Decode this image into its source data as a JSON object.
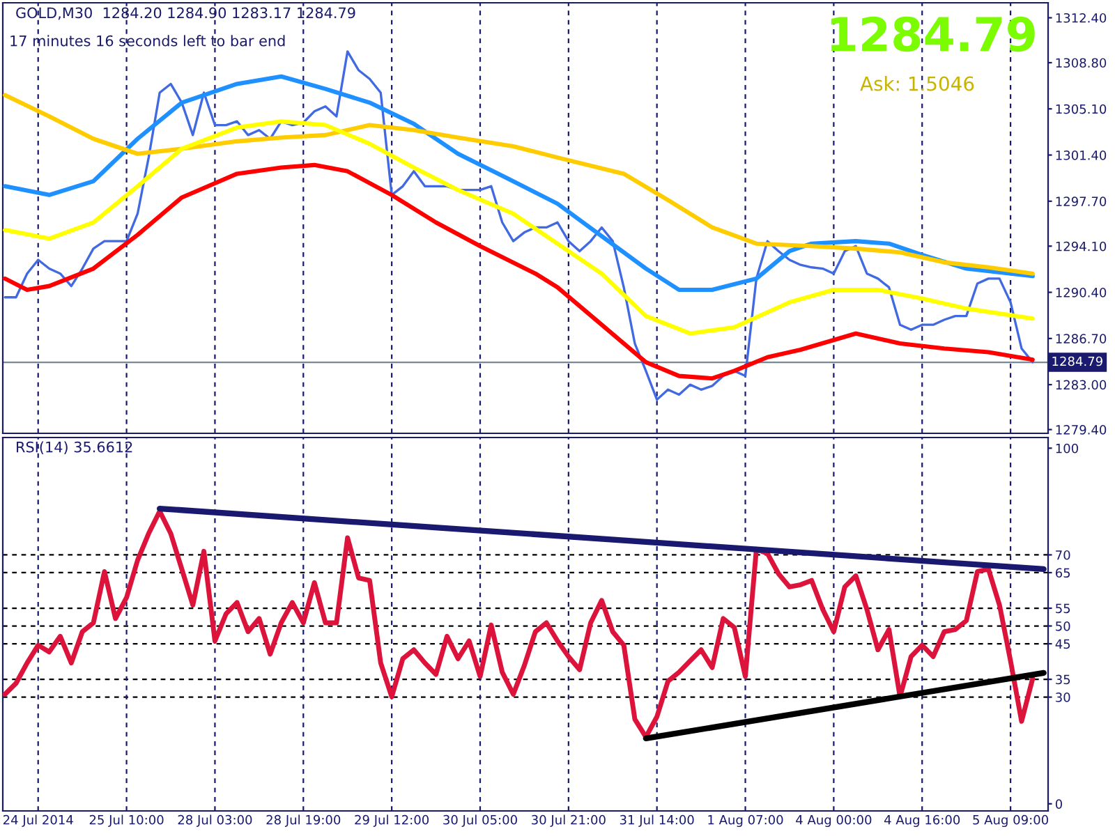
{
  "chart_data": [
    {
      "type": "line",
      "title": "GOLD,M30  1284.20 1284.90 1283.17 1284.79",
      "annotations": [
        "17 minutes 16 seconds left to bar end",
        "1284.79",
        "Ask: 1.5046"
      ],
      "categories": [
        null,
        null,
        null,
        null,
        null,
        null,
        null,
        null,
        null,
        null,
        null,
        null,
        null,
        null,
        null,
        null,
        null,
        null,
        null,
        null,
        null,
        null,
        null,
        null,
        null,
        null,
        null,
        null,
        null,
        null,
        null,
        null,
        null,
        null,
        null,
        null,
        null,
        null,
        null,
        null,
        null,
        null,
        null,
        null,
        null,
        null,
        null,
        null,
        null,
        null,
        null,
        null,
        null,
        null,
        null,
        null,
        null,
        null,
        null,
        null,
        null,
        null,
        null,
        null,
        null,
        null,
        null,
        null,
        null,
        null,
        null,
        null,
        null,
        null,
        null,
        null,
        null,
        null,
        null,
        null,
        null,
        null,
        null,
        null,
        null,
        null,
        null,
        null,
        null,
        null,
        null,
        null,
        null,
        null,
        null
      ],
      "tick_labels": "y",
      "grid": "x",
      "ylim": [
        1279.1,
        1313.6
      ],
      "yticks": [
        {
          "value": 1279.4,
          "label": "1279.40"
        },
        {
          "value": 1283.0,
          "label": "1283.00"
        },
        {
          "value": 1286.7,
          "label": "1286.70"
        },
        {
          "value": 1290.4,
          "label": "1290.40"
        },
        {
          "value": 1294.1,
          "label": "1294.10"
        },
        {
          "value": 1297.7,
          "label": "1297.70"
        },
        {
          "value": 1301.4,
          "label": "1301.40"
        },
        {
          "value": 1305.1,
          "label": "1305.10"
        },
        {
          "value": 1308.8,
          "label": "1308.80"
        },
        {
          "value": 1312.4,
          "label": "1312.40"
        }
      ],
      "ref_lines": [
        {
          "axis": "y",
          "value": 1284.79,
          "label": "1284.79",
          "color": "#778899",
          "line_style": "solid"
        }
      ],
      "series": [
        {
          "color": "#4169e1",
          "values": [
            1290.0,
            1290.0,
            1291.9,
            1293.0,
            1292.3,
            1291.9,
            1290.9,
            1292.3,
            1293.9,
            1294.5,
            1294.5,
            1294.5,
            1296.7,
            1301.2,
            1306.4,
            1307.1,
            1305.6,
            1303.0,
            1306.4,
            1303.8,
            1303.8,
            1304.1,
            1303.0,
            1303.4,
            1302.7,
            1304.1,
            1303.8,
            1304.0,
            1304.9,
            1305.3,
            1304.5,
            1309.7,
            1308.2,
            1307.5,
            1306.4,
            1298.2,
            1298.9,
            1300.1,
            1298.9,
            1298.9,
            1298.9,
            1298.6,
            1298.6,
            1298.6,
            1298.9,
            1296.0,
            1294.5,
            1295.2,
            1295.6,
            1295.6,
            1296.0,
            1294.5,
            1293.7,
            1294.5,
            1295.6,
            1294.5,
            1290.8,
            1286.3,
            1284.1,
            1281.8,
            1282.6,
            1282.2,
            1283.0,
            1282.6,
            1282.9,
            1283.7,
            1284.1,
            1283.7,
            1291.5,
            1294.5,
            1293.7,
            1293.0,
            1292.6,
            1292.4,
            1292.3,
            1291.9,
            1293.7,
            1294.1,
            1291.9,
            1291.5,
            1290.8,
            1287.8,
            1287.4,
            1287.8,
            1287.8,
            1288.2,
            1288.5,
            1288.5,
            1291.1,
            1291.5,
            1291.5,
            1289.6,
            1285.9,
            1284.8,
            null
          ]
        },
        {
          "color": "#1e90ff",
          "values": [
            1298.9,
            null,
            null,
            null,
            1298.2,
            null,
            null,
            null,
            1299.3,
            null,
            null,
            null,
            1302.7,
            null,
            null,
            null,
            1305.6,
            null,
            null,
            null,
            null,
            1307.1,
            null,
            null,
            null,
            1307.7,
            null,
            null,
            null,
            1306.7,
            null,
            null,
            null,
            1305.6,
            null,
            null,
            null,
            1303.9,
            null,
            null,
            null,
            1301.5,
            null,
            null,
            null,
            null,
            1299.3,
            null,
            null,
            null,
            1297.5,
            null,
            null,
            null,
            1294.9,
            null,
            null,
            null,
            1292.3,
            null,
            null,
            1290.6,
            null,
            null,
            1290.6,
            null,
            null,
            null,
            1291.5,
            null,
            null,
            1293.7,
            null,
            1294.3,
            null,
            null,
            null,
            1294.5,
            null,
            null,
            1294.3,
            null,
            null,
            1293.4,
            null,
            null,
            null,
            1292.3,
            null,
            null,
            null,
            null,
            null,
            1291.7,
            null
          ]
        },
        {
          "color": "#ffcc00",
          "values": [
            1306.2,
            null,
            null,
            null,
            1304.5,
            null,
            null,
            null,
            1302.7,
            null,
            null,
            null,
            1301.5,
            null,
            null,
            null,
            1301.9,
            null,
            null,
            null,
            null,
            1302.5,
            null,
            null,
            null,
            1302.8,
            null,
            null,
            null,
            1303.0,
            null,
            null,
            null,
            1303.8,
            null,
            null,
            null,
            1303.4,
            null,
            null,
            null,
            1302.8,
            null,
            null,
            null,
            null,
            1302.1,
            null,
            null,
            null,
            1301.2,
            null,
            null,
            null,
            null,
            null,
            1299.9,
            null,
            null,
            null,
            1297.8,
            null,
            null,
            null,
            1295.6,
            null,
            null,
            null,
            1294.3,
            null,
            null,
            null,
            null,
            1294.1,
            null,
            null,
            null,
            1293.9,
            null,
            null,
            null,
            1293.6,
            null,
            null,
            null,
            1292.8,
            null,
            null,
            null,
            1292.4,
            null,
            null,
            null,
            1291.9,
            null
          ]
        },
        {
          "color": "#ffff00",
          "values": [
            1295.4,
            null,
            null,
            null,
            1294.7,
            null,
            null,
            null,
            1296.0,
            null,
            null,
            null,
            1298.9,
            null,
            null,
            null,
            1301.9,
            null,
            null,
            null,
            null,
            1303.6,
            null,
            null,
            null,
            1304.1,
            null,
            null,
            null,
            1303.8,
            null,
            null,
            null,
            1302.3,
            null,
            null,
            null,
            1300.4,
            null,
            null,
            null,
            1298.6,
            null,
            null,
            null,
            null,
            1296.7,
            null,
            null,
            null,
            1294.3,
            null,
            null,
            null,
            1291.9,
            null,
            null,
            null,
            1288.5,
            null,
            null,
            null,
            1287.1,
            null,
            null,
            null,
            1287.6,
            null,
            null,
            null,
            null,
            1289.6,
            null,
            null,
            null,
            1290.6,
            null,
            null,
            null,
            1290.6,
            null,
            null,
            null,
            1289.9,
            null,
            null,
            null,
            1289.1,
            null,
            null,
            null,
            null,
            null,
            1288.3,
            null
          ]
        },
        {
          "color": "#ff0000",
          "values": [
            1291.5,
            null,
            1290.6,
            null,
            1290.9,
            null,
            null,
            null,
            1292.3,
            null,
            null,
            null,
            1295.0,
            null,
            null,
            null,
            1298.0,
            null,
            null,
            null,
            null,
            1299.9,
            null,
            null,
            null,
            1300.4,
            null,
            null,
            1300.6,
            null,
            null,
            1300.1,
            null,
            null,
            null,
            1298.2,
            null,
            null,
            null,
            1296.0,
            null,
            null,
            null,
            1294.1,
            null,
            null,
            null,
            null,
            1291.9,
            null,
            1290.8,
            null,
            null,
            null,
            1287.8,
            null,
            null,
            null,
            1284.8,
            null,
            null,
            1283.7,
            null,
            null,
            1283.5,
            null,
            1284.1,
            null,
            null,
            1285.2,
            null,
            null,
            1285.8,
            null,
            null,
            null,
            null,
            1287.1,
            null,
            null,
            null,
            1286.3,
            null,
            null,
            null,
            1285.9,
            null,
            null,
            null,
            1285.6,
            null,
            null,
            null,
            1285.0,
            null
          ]
        }
      ]
    },
    {
      "type": "line",
      "title": "RSI(14) 35.6612",
      "categories": [
        null,
        null,
        null,
        "24 Jul 2014",
        null,
        null,
        null,
        null,
        null,
        null,
        null,
        "25 Jul 10:00",
        null,
        null,
        null,
        null,
        null,
        null,
        null,
        "28 Jul 03:00",
        null,
        null,
        null,
        null,
        null,
        null,
        null,
        "28 Jul 19:00",
        null,
        null,
        null,
        null,
        null,
        null,
        null,
        "29 Jul 12:00",
        null,
        null,
        null,
        null,
        null,
        null,
        null,
        "30 Jul 05:00",
        null,
        null,
        null,
        null,
        null,
        null,
        null,
        "30 Jul 21:00",
        null,
        null,
        null,
        null,
        null,
        null,
        null,
        "31 Jul 14:00",
        null,
        null,
        null,
        null,
        null,
        null,
        null,
        "1 Aug 07:00",
        null,
        null,
        null,
        null,
        null,
        null,
        null,
        "4 Aug 00:00",
        null,
        null,
        null,
        null,
        null,
        null,
        null,
        "4 Aug 16:00",
        null,
        null,
        null,
        null,
        null,
        null,
        null,
        "5 Aug 09:00",
        null,
        null,
        null
      ],
      "grid": "x",
      "ylim": [
        -2,
        103
      ],
      "yticks": [
        0,
        30,
        35,
        45,
        50,
        55,
        65,
        70,
        100
      ],
      "ref_lines": [
        {
          "axis": "y",
          "value": 30,
          "label": null,
          "color": "#000000",
          "line_style": "dashed"
        },
        {
          "axis": "y",
          "value": 35,
          "label": null,
          "color": "#000000",
          "line_style": "dashed"
        },
        {
          "axis": "y",
          "value": 45,
          "label": null,
          "color": "#000000",
          "line_style": "dashed"
        },
        {
          "axis": "y",
          "value": 50,
          "label": null,
          "color": "#000000",
          "line_style": "dashed"
        },
        {
          "axis": "y",
          "value": 55,
          "label": null,
          "color": "#000000",
          "line_style": "dashed"
        },
        {
          "axis": "y",
          "value": 65,
          "label": null,
          "color": "#000000",
          "line_style": "dashed"
        },
        {
          "axis": "y",
          "value": 70,
          "label": null,
          "color": "#000000",
          "line_style": "dashed"
        }
      ],
      "series": [
        {
          "color": "#dc143c",
          "values": [
            30.8,
            33.9,
            39.6,
            44.6,
            42.7,
            47.1,
            39.6,
            48.4,
            50.9,
            65.3,
            52.1,
            58,
            68.5,
            76,
            82.3,
            76,
            66,
            55.9,
            71,
            45.8,
            53.4,
            56.6,
            48.4,
            52.1,
            42.1,
            50.9,
            56.6,
            50.9,
            62.2,
            50.9,
            50.9,
            74.8,
            63.5,
            62.8,
            39.6,
            30.1,
            40.8,
            43.3,
            39.6,
            36.4,
            47.1,
            40.8,
            45.8,
            35.8,
            50.3,
            37,
            30.8,
            38.9,
            48.4,
            50.9,
            45.8,
            41.4,
            37.7,
            50.9,
            57.2,
            48.4,
            44.6,
            23.8,
            18.8,
            24.5,
            34.5,
            37,
            40.2,
            43.3,
            38.3,
            52.1,
            49.6,
            35.8,
            71.6,
            70.4,
            64.7,
            61,
            61.6,
            62.8,
            54.7,
            48.4,
            61,
            64.1,
            54.7,
            43.3,
            49,
            30.1,
            41.4,
            44.6,
            41.4,
            48.4,
            49,
            51.5,
            65.3,
            66,
            55.9,
            40.2,
            23.2,
            35.2,
            null
          ]
        },
        {
          "color": "#191970",
          "values": [
            null,
            null,
            null,
            null,
            null,
            null,
            null,
            null,
            null,
            null,
            null,
            null,
            null,
            null,
            83,
            null,
            null,
            null,
            null,
            null,
            null,
            null,
            null,
            null,
            null,
            null,
            null,
            null,
            null,
            null,
            null,
            null,
            null,
            null,
            null,
            null,
            null,
            null,
            null,
            null,
            null,
            null,
            null,
            null,
            null,
            null,
            null,
            null,
            null,
            null,
            null,
            null,
            null,
            null,
            null,
            null,
            null,
            null,
            null,
            null,
            null,
            null,
            null,
            null,
            null,
            null,
            null,
            null,
            null,
            null,
            null,
            null,
            null,
            null,
            null,
            null,
            null,
            null,
            null,
            null,
            null,
            null,
            null,
            null,
            null,
            null,
            null,
            null,
            null,
            null,
            null,
            null,
            null,
            null,
            66
          ]
        },
        {
          "color": "#000000",
          "values": [
            null,
            null,
            null,
            null,
            null,
            null,
            null,
            null,
            null,
            null,
            null,
            null,
            null,
            null,
            null,
            null,
            null,
            null,
            null,
            null,
            null,
            null,
            null,
            null,
            null,
            null,
            null,
            null,
            null,
            null,
            null,
            null,
            null,
            null,
            null,
            null,
            null,
            null,
            null,
            null,
            null,
            null,
            null,
            null,
            null,
            null,
            null,
            null,
            null,
            null,
            null,
            null,
            null,
            null,
            null,
            null,
            null,
            null,
            18.4,
            null,
            null,
            null,
            null,
            null,
            null,
            null,
            null,
            null,
            null,
            null,
            null,
            null,
            null,
            null,
            null,
            null,
            null,
            null,
            null,
            null,
            null,
            null,
            null,
            null,
            null,
            null,
            null,
            null,
            null,
            null,
            null,
            null,
            null,
            null,
            36.8
          ]
        }
      ]
    }
  ]
}
